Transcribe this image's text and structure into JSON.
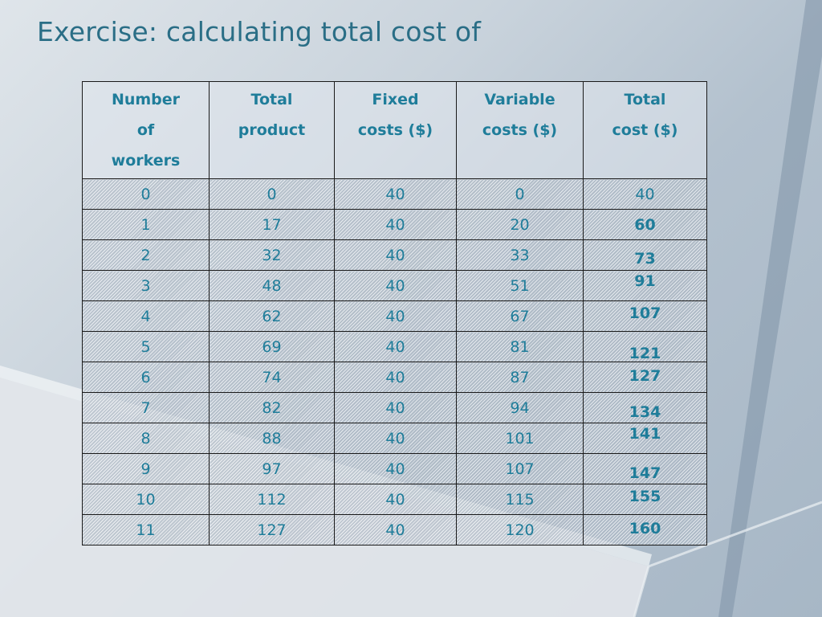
{
  "slide": {
    "title": "Exercise: calculating total cost of"
  },
  "table": {
    "headers": [
      "Number of workers",
      "Total product",
      "Fixed costs ($)",
      "Variable costs ($)",
      "Total cost ($)"
    ],
    "header_lines": [
      [
        "Number",
        "of",
        "workers"
      ],
      [
        "Total",
        "product"
      ],
      [
        "Fixed",
        "costs ($)"
      ],
      [
        "Variable",
        "costs ($)"
      ],
      [
        "Total",
        "cost ($)"
      ]
    ],
    "rows": [
      {
        "workers": "0",
        "total_product": "0",
        "fixed": "40",
        "variable": "0",
        "total": "40"
      },
      {
        "workers": "1",
        "total_product": "17",
        "fixed": "40",
        "variable": "20",
        "total": "60"
      },
      {
        "workers": "2",
        "total_product": "32",
        "fixed": "40",
        "variable": "33",
        "total": "73"
      },
      {
        "workers": "3",
        "total_product": "48",
        "fixed": "40",
        "variable": "51",
        "total": "91"
      },
      {
        "workers": "4",
        "total_product": "62",
        "fixed": "40",
        "variable": "67",
        "total": "107"
      },
      {
        "workers": "5",
        "total_product": "69",
        "fixed": "40",
        "variable": "81",
        "total": "121"
      },
      {
        "workers": "6",
        "total_product": "74",
        "fixed": "40",
        "variable": "87",
        "total": "127"
      },
      {
        "workers": "7",
        "total_product": "82",
        "fixed": "40",
        "variable": "94",
        "total": "134"
      },
      {
        "workers": "8",
        "total_product": "88",
        "fixed": "40",
        "variable": "101",
        "total": "141"
      },
      {
        "workers": "9",
        "total_product": "97",
        "fixed": "40",
        "variable": "107",
        "total": "147"
      },
      {
        "workers": "10",
        "total_product": "112",
        "fixed": "40",
        "variable": "115",
        "total": "155"
      },
      {
        "workers": "11",
        "total_product": "127",
        "fixed": "40",
        "variable": "120",
        "total": "160"
      }
    ]
  },
  "colors": {
    "title": "#2a6e86",
    "table_text": "#1f7d9a",
    "handwritten_total": "#0e2f62",
    "border": "#1a1a1a"
  }
}
